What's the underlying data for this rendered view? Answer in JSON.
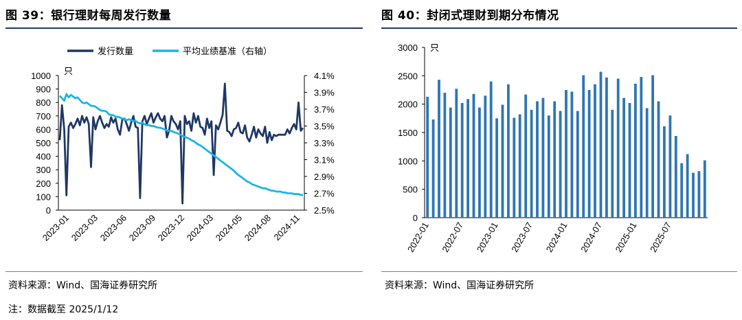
{
  "left": {
    "title": "图 39：银行理财每周发行数量",
    "source": "资料来源：Wind、国海证券研究所",
    "note": "注：数据截至 2025/1/12"
  },
  "right": {
    "title": "图 40：封闭式理财到期分布情况",
    "source": "资料来源：Wind、国海证券研究所"
  },
  "colors": {
    "dark_series": "#1f3864",
    "light_series": "#1ab4ea",
    "bar": "#2e75b6",
    "rule": "#1f3864"
  },
  "chart_data": [
    {
      "type": "line",
      "x_tick_labels": [
        "2023-01",
        "2023-03",
        "2023-06",
        "2023-09",
        "2023-12",
        "2024-03",
        "2024-05",
        "2024-08",
        "2024-11"
      ],
      "y_unit_label": "只",
      "y_ticks": [
        0,
        100,
        200,
        300,
        400,
        500,
        600,
        700,
        800,
        900,
        1000
      ],
      "y_lim": [
        0,
        1000
      ],
      "y2_ticks": [
        "2.5%",
        "2.7%",
        "2.9%",
        "3.1%",
        "3.3%",
        "3.5%",
        "3.7%",
        "3.9%",
        "4.1%"
      ],
      "y2_lim": [
        2.5,
        4.1
      ],
      "legend_position": "top",
      "series": [
        {
          "name": "发行数量",
          "axis": "left",
          "values": [
            520,
            780,
            600,
            110,
            620,
            650,
            610,
            640,
            680,
            630,
            700,
            650,
            690,
            640,
            320,
            690,
            600,
            660,
            700,
            650,
            610,
            640,
            620,
            690,
            650,
            680,
            600,
            560,
            670,
            680,
            640,
            590,
            650,
            700,
            620,
            610,
            90,
            660,
            700,
            640,
            680,
            720,
            650,
            690,
            720,
            680,
            660,
            700,
            540,
            590,
            700,
            660,
            640,
            600,
            660,
            50,
            700,
            640,
            660,
            590,
            720,
            650,
            700,
            620,
            610,
            560,
            680,
            610,
            660,
            260,
            630,
            600,
            650,
            710,
            940,
            590,
            580,
            550,
            600,
            610,
            650,
            580,
            570,
            630,
            540,
            510,
            560,
            620,
            540,
            600,
            570,
            550,
            620,
            500,
            580,
            520,
            560,
            550,
            560,
            560,
            560,
            560,
            600,
            570,
            610,
            640,
            600,
            800,
            590,
            610
          ],
          "color": "#1f3864"
        },
        {
          "name": "平均业绩基准（右轴）",
          "axis": "right",
          "values": [
            3.86,
            3.83,
            3.8,
            3.88,
            3.84,
            3.87,
            3.85,
            3.83,
            3.84,
            3.81,
            3.78,
            3.77,
            3.78,
            3.76,
            3.74,
            3.74,
            3.73,
            3.71,
            3.69,
            3.68,
            3.68,
            3.67,
            3.64,
            3.63,
            3.63,
            3.61,
            3.61,
            3.6,
            3.59,
            3.58,
            3.57,
            3.58,
            3.57,
            3.56,
            3.56,
            3.54,
            3.53,
            3.54,
            3.52,
            3.51,
            3.51,
            3.5,
            3.5,
            3.49,
            3.48,
            3.48,
            3.47,
            3.46,
            3.45,
            3.44,
            3.44,
            3.43,
            3.42,
            3.41,
            3.4,
            3.38,
            3.37,
            3.36,
            3.35,
            3.33,
            3.32,
            3.3,
            3.28,
            3.27,
            3.25,
            3.23,
            3.21,
            3.19,
            3.17,
            3.15,
            3.13,
            3.11,
            3.09,
            3.07,
            3.05,
            3.03,
            3.01,
            2.99,
            2.97,
            2.94,
            2.92,
            2.9,
            2.88,
            2.86,
            2.84,
            2.83,
            2.81,
            2.8,
            2.79,
            2.78,
            2.77,
            2.76,
            2.76,
            2.75,
            2.74,
            2.73,
            2.73,
            2.72,
            2.72,
            2.72,
            2.71,
            2.71,
            2.7,
            2.7,
            2.7,
            2.69,
            2.69,
            2.69,
            2.68,
            2.68
          ],
          "color": "#1ab4ea"
        }
      ]
    },
    {
      "type": "bar",
      "x_tick_labels": [
        "2022-01",
        "2022-07",
        "2023-01",
        "2023-07",
        "2024-01",
        "2024-07",
        "2025-01",
        "2025-07"
      ],
      "y_unit_label": "只",
      "y_ticks": [
        0,
        500,
        1000,
        1500,
        2000,
        2500,
        3000
      ],
      "y_lim": [
        0,
        3000
      ],
      "series": [
        {
          "values": [
            2130,
            1730,
            2430,
            2200,
            1940,
            2270,
            2020,
            2090,
            2180,
            1940,
            2150,
            2400,
            1750,
            1990,
            2350,
            1760,
            1820,
            2170,
            1900,
            2050,
            2110,
            1800,
            2050,
            1880,
            2250,
            2220,
            1880,
            2510,
            2250,
            2350,
            2570,
            2470,
            1900,
            2450,
            2110,
            2020,
            2360,
            2480,
            1930,
            2510,
            2050,
            1610,
            1800,
            1440,
            960,
            1120,
            790,
            820,
            1010
          ],
          "color": "#2e75b6"
        }
      ]
    }
  ]
}
